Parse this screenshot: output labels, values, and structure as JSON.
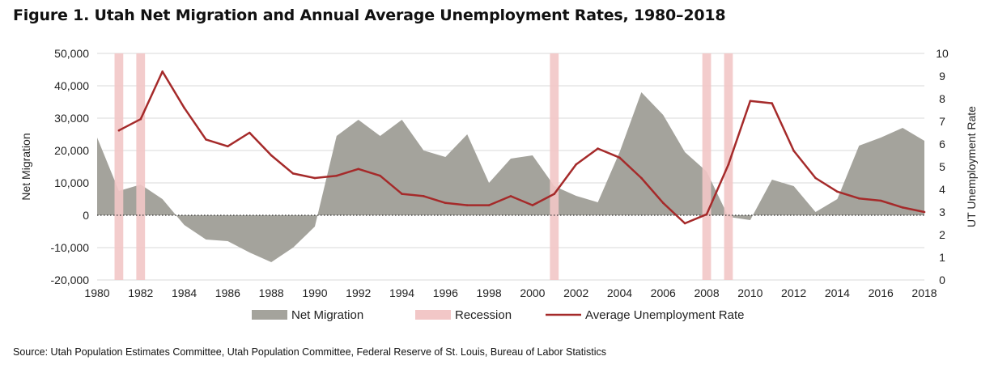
{
  "title": "Figure 1. Utah Net Migration and Annual Average Unemployment Rates, 1980–2018",
  "source": "Source: Utah Population Estimates Committee, Utah Population Committee, Federal Reserve of St. Louis, Bureau of Labor Statistics",
  "colors": {
    "migration": "#a4a39c",
    "recession": "#f2c7c7",
    "unemployment": "#a52a2a",
    "zero_line": "#333333"
  },
  "chart_data": {
    "type": "area",
    "x": [
      1980,
      1981,
      1982,
      1983,
      1984,
      1985,
      1986,
      1987,
      1988,
      1989,
      1990,
      1991,
      1992,
      1993,
      1994,
      1995,
      1996,
      1997,
      1998,
      1999,
      2000,
      2001,
      2002,
      2003,
      2004,
      2005,
      2006,
      2007,
      2008,
      2009,
      2010,
      2011,
      2012,
      2013,
      2014,
      2015,
      2016,
      2017,
      2018
    ],
    "xlim": [
      1980,
      2018
    ],
    "xticks": [
      "1980",
      "1982",
      "1984",
      "1986",
      "1988",
      "1990",
      "1992",
      "1994",
      "1996",
      "1998",
      "2000",
      "2002",
      "2004",
      "2006",
      "2008",
      "2010",
      "2012",
      "2014",
      "2016",
      "2018"
    ],
    "left_axis": {
      "label": "Net Migration",
      "ylim": [
        -20000,
        50000
      ],
      "ticks": [
        "-20,000",
        "-10,000",
        "0",
        "10,000",
        "20,000",
        "30,000",
        "40,000",
        "50,000"
      ]
    },
    "right_axis": {
      "label": "UT Unemployment Rate",
      "ylim": [
        0,
        10
      ],
      "ticks": [
        "0",
        "1",
        "2",
        "3",
        "4",
        "5",
        "6",
        "7",
        "8",
        "9",
        "10"
      ]
    },
    "series": [
      {
        "name": "Net Migration",
        "type": "area",
        "axis": "left",
        "x": [
          1980,
          1981,
          1982,
          1983,
          1984,
          1985,
          1986,
          1987,
          1988,
          1989,
          1990,
          1991,
          1992,
          1993,
          1994,
          1995,
          1996,
          1997,
          1998,
          1999,
          2000,
          2001,
          2002,
          2003,
          2004,
          2005,
          2006,
          2007,
          2008,
          2009,
          2010,
          2011,
          2012,
          2013,
          2014,
          2015,
          2016,
          2017,
          2018
        ],
        "values": [
          24000,
          7500,
          9500,
          5000,
          -3000,
          -7500,
          -8000,
          -11500,
          -14500,
          -10000,
          -3500,
          24500,
          29500,
          24500,
          29500,
          20000,
          18000,
          25000,
          10000,
          17500,
          18500,
          9000,
          6000,
          4000,
          19500,
          38000,
          31000,
          19500,
          13500,
          -500,
          -1500,
          11000,
          9000,
          1000,
          5000,
          21500,
          24000,
          27000,
          23000
        ]
      },
      {
        "name": "Recession",
        "type": "band",
        "years": [
          1981,
          1982,
          2001,
          2008,
          2009
        ]
      },
      {
        "name": "Average Unemployment Rate",
        "type": "line",
        "axis": "right",
        "x": [
          1981,
          1982,
          1983,
          1984,
          1985,
          1986,
          1987,
          1988,
          1989,
          1990,
          1991,
          1992,
          1993,
          1994,
          1995,
          1996,
          1997,
          1998,
          1999,
          2000,
          2001,
          2002,
          2003,
          2004,
          2005,
          2006,
          2007,
          2008,
          2009,
          2010,
          2011,
          2012,
          2013,
          2014,
          2015,
          2016,
          2017,
          2018
        ],
        "values": [
          6.6,
          7.1,
          9.2,
          7.6,
          6.2,
          5.9,
          6.5,
          5.5,
          4.7,
          4.5,
          4.6,
          4.9,
          4.6,
          3.8,
          3.7,
          3.4,
          3.3,
          3.3,
          3.7,
          3.3,
          3.8,
          5.1,
          5.8,
          5.4,
          4.5,
          3.4,
          2.5,
          2.9,
          5.1,
          7.9,
          7.8,
          5.7,
          4.5,
          3.9,
          3.6,
          3.5,
          3.2,
          3.0
        ]
      }
    ],
    "legend": {
      "position": "bottom",
      "items": [
        "Net Migration",
        "Recession",
        "Average Unemployment Rate"
      ]
    }
  }
}
